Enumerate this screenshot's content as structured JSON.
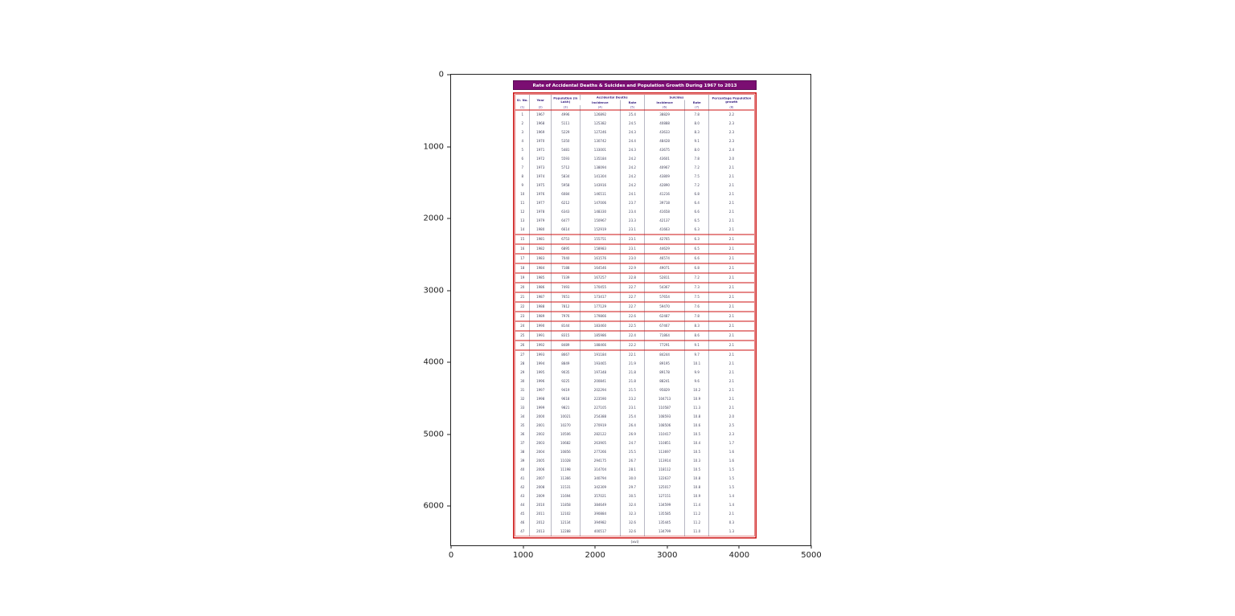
{
  "figure": {
    "axes": {
      "x_ticks": [
        "0",
        "1000",
        "2000",
        "3000",
        "4000",
        "5000"
      ],
      "y_ticks": [
        "0",
        "1000",
        "2000",
        "3000",
        "4000",
        "5000",
        "6000"
      ]
    }
  },
  "document": {
    "title": "Rate of Accidental Deaths & Suicides and Population Growth During 1967 to 2013",
    "footer": "(xvi)",
    "colors": {
      "title_bar_bg": "#7b0e72",
      "title_bar_text": "#ffffff",
      "border_red": "#cc1111",
      "header_text": "#3b2483",
      "body_text": "#44445c"
    },
    "header": {
      "sl_no": "Sl. No.",
      "year": "Year",
      "population": "Population (in Lakh)",
      "accidental_deaths": "Accidental Deaths",
      "suicides": "Suicides",
      "incidence": "Incidence",
      "rate": "Rate",
      "growth": "Percentage Population growth",
      "index_row": [
        "(1)",
        "(2)",
        "(3)",
        "(4)",
        "(5)",
        "(6)",
        "(7)",
        "(8)"
      ]
    }
  },
  "chart_data": {
    "type": "table",
    "title": "Rate of Accidental Deaths & Suicides and Population Growth During 1967 to 2013",
    "columns": [
      "Sl. No.",
      "Year",
      "Population (in Lakh)",
      "Accidental Deaths - Incidence",
      "Accidental Deaths - Rate",
      "Suicides - Incidence",
      "Suicides - Rate",
      "Percentage Population growth"
    ],
    "red_row_sl_range": [
      15,
      26
    ],
    "rows": [
      [
        "1",
        "1967",
        "4996",
        "126892",
        "25.4",
        "38829",
        "7.8",
        "2.2"
      ],
      [
        "2",
        "1968",
        "5111",
        "125382",
        "24.5",
        "40888",
        "8.0",
        "2.3"
      ],
      [
        "3",
        "1969",
        "5229",
        "127246",
        "24.3",
        "43633",
        "8.3",
        "2.3"
      ],
      [
        "4",
        "1970",
        "5350",
        "130742",
        "24.4",
        "48428",
        "9.1",
        "2.3"
      ],
      [
        "5",
        "1971",
        "5481",
        "133001",
        "24.3",
        "43675",
        "8.0",
        "2.4"
      ],
      [
        "6",
        "1972",
        "5593",
        "135184",
        "24.2",
        "43601",
        "7.8",
        "2.0"
      ],
      [
        "7",
        "1973",
        "5712",
        "138094",
        "24.2",
        "40967",
        "7.2",
        "2.1"
      ],
      [
        "8",
        "1974",
        "5834",
        "141304",
        "24.2",
        "43809",
        "7.5",
        "2.1"
      ],
      [
        "9",
        "1975",
        "5958",
        "143916",
        "24.2",
        "42890",
        "7.2",
        "2.1"
      ],
      [
        "10",
        "1976",
        "6084",
        "146511",
        "24.1",
        "41216",
        "6.8",
        "2.1"
      ],
      [
        "11",
        "1977",
        "6212",
        "147006",
        "23.7",
        "39718",
        "6.4",
        "2.1"
      ],
      [
        "12",
        "1978",
        "6343",
        "148330",
        "23.4",
        "41658",
        "6.6",
        "2.1"
      ],
      [
        "13",
        "1979",
        "6477",
        "150967",
        "23.3",
        "42137",
        "6.5",
        "2.1"
      ],
      [
        "14",
        "1980",
        "6614",
        "152919",
        "23.1",
        "41663",
        "6.3",
        "2.1"
      ],
      [
        "15",
        "1981",
        "6753",
        "155751",
        "23.1",
        "42765",
        "6.3",
        "2.1"
      ],
      [
        "16",
        "1982",
        "6895",
        "158983",
        "23.1",
        "44629",
        "6.5",
        "2.1"
      ],
      [
        "17",
        "1983",
        "7040",
        "161576",
        "23.0",
        "46574",
        "6.6",
        "2.1"
      ],
      [
        "18",
        "1984",
        "7188",
        "164546",
        "22.9",
        "49071",
        "6.8",
        "2.1"
      ],
      [
        "19",
        "1985",
        "7339",
        "167257",
        "22.8",
        "52811",
        "7.2",
        "2.1"
      ],
      [
        "20",
        "1986",
        "7493",
        "170455",
        "22.7",
        "54367",
        "7.3",
        "2.1"
      ],
      [
        "21",
        "1987",
        "7651",
        "173417",
        "22.7",
        "57654",
        "7.5",
        "2.1"
      ],
      [
        "22",
        "1988",
        "7812",
        "177129",
        "22.7",
        "59470",
        "7.6",
        "2.1"
      ],
      [
        "23",
        "1989",
        "7976",
        "179866",
        "22.6",
        "62487",
        "7.8",
        "2.1"
      ],
      [
        "24",
        "1990",
        "8144",
        "183460",
        "22.5",
        "67467",
        "8.3",
        "2.1"
      ],
      [
        "25",
        "1991",
        "8315",
        "185986",
        "22.4",
        "71864",
        "8.6",
        "2.1"
      ],
      [
        "26",
        "1992",
        "8489",
        "188466",
        "22.2",
        "77291",
        "9.1",
        "2.1"
      ],
      [
        "27",
        "1993",
        "8667",
        "191184",
        "22.1",
        "84244",
        "9.7",
        "2.1"
      ],
      [
        "28",
        "1994",
        "8849",
        "193465",
        "21.9",
        "89195",
        "10.1",
        "2.1"
      ],
      [
        "29",
        "1995",
        "9035",
        "197348",
        "21.8",
        "89178",
        "9.9",
        "2.1"
      ],
      [
        "30",
        "1996",
        "9225",
        "200841",
        "21.8",
        "88241",
        "9.6",
        "2.1"
      ],
      [
        "31",
        "1997",
        "9419",
        "202294",
        "21.5",
        "95829",
        "10.2",
        "2.1"
      ],
      [
        "32",
        "1998",
        "9618",
        "223590",
        "23.2",
        "104713",
        "10.9",
        "2.1"
      ],
      [
        "33",
        "1999",
        "9821",
        "227105",
        "23.1",
        "110587",
        "11.3",
        "2.1"
      ],
      [
        "34",
        "2000",
        "10021",
        "254388",
        "25.4",
        "108593",
        "10.8",
        "2.0"
      ],
      [
        "35",
        "2001",
        "10270",
        "270919",
        "26.4",
        "108506",
        "10.6",
        "2.5"
      ],
      [
        "36",
        "2002",
        "10506",
        "282122",
        "26.9",
        "110417",
        "10.5",
        "2.3"
      ],
      [
        "37",
        "2003",
        "10682",
        "263905",
        "24.7",
        "110851",
        "10.4",
        "1.7"
      ],
      [
        "38",
        "2004",
        "10856",
        "277266",
        "25.5",
        "113697",
        "10.5",
        "1.6"
      ],
      [
        "39",
        "2005",
        "11028",
        "294175",
        "26.7",
        "113914",
        "10.3",
        "1.6"
      ],
      [
        "40",
        "2006",
        "11198",
        "314704",
        "28.1",
        "118112",
        "10.5",
        "1.5"
      ],
      [
        "41",
        "2007",
        "11366",
        "340794",
        "30.0",
        "122637",
        "10.8",
        "1.5"
      ],
      [
        "42",
        "2008",
        "11531",
        "342309",
        "29.7",
        "125017",
        "10.8",
        "1.5"
      ],
      [
        "43",
        "2009",
        "11694",
        "357021",
        "30.5",
        "127151",
        "10.9",
        "1.4"
      ],
      [
        "44",
        "2010",
        "11858",
        "384649",
        "32.4",
        "134599",
        "11.4",
        "1.4"
      ],
      [
        "45",
        "2011",
        "12102",
        "390884",
        "32.3",
        "135585",
        "11.2",
        "2.1"
      ],
      [
        "46",
        "2012",
        "12134",
        "394982",
        "32.6",
        "135445",
        "11.2",
        "0.3"
      ],
      [
        "47",
        "2013",
        "12288",
        "400517",
        "32.6",
        "134799",
        "11.0",
        "1.3"
      ]
    ]
  }
}
